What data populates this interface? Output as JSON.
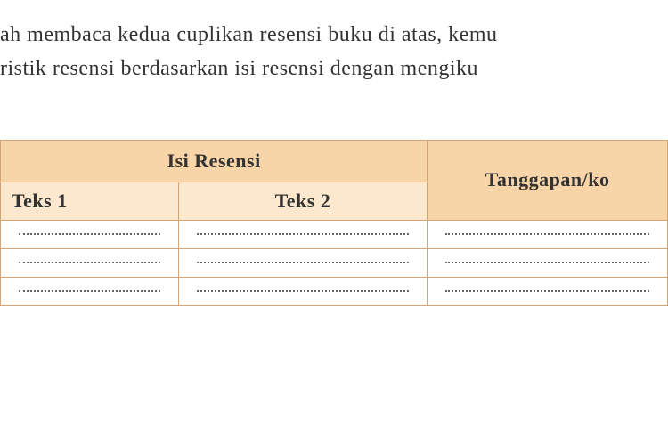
{
  "paragraph": {
    "line1": "ah membaca kedua cuplikan resensi buku di atas, kemu",
    "line2": "ristik resensi berdasarkan isi resensi dengan mengiku"
  },
  "table": {
    "header_main": "Isi Resensi",
    "header_col1": "Teks 1",
    "header_col2": "Teks 2",
    "header_col3": "Tanggapan/ko",
    "row_count": 3,
    "colors": {
      "header_main_bg": "#f8d5a8",
      "header_sub_bg": "#fce8cf",
      "border": "#d4a574",
      "text": "#333333",
      "dotted": "#666666"
    },
    "column_widths": {
      "teks1": 200,
      "teks2": 280,
      "tanggapan": 270
    }
  }
}
